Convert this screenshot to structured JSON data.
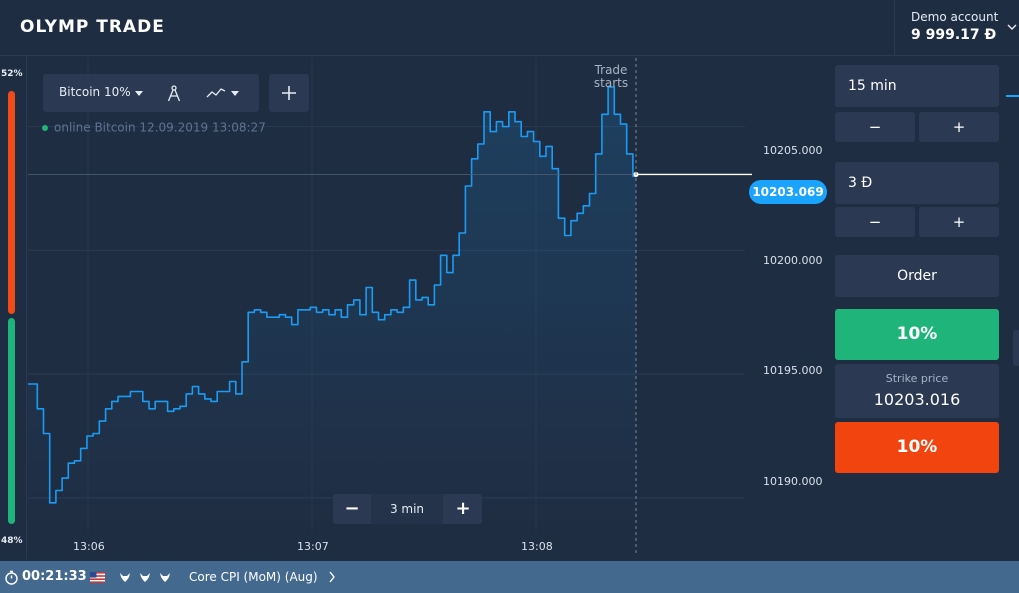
{
  "app": {
    "logo": "OLYMP TRADE"
  },
  "account": {
    "label": "Demo account",
    "balance": "9 999.17 Đ"
  },
  "sentiment": {
    "up_pct": "52%",
    "down_pct": "48%",
    "up_value": 52,
    "down_value": 48,
    "up_color": "#f24b1a",
    "down_color": "#1fb57a"
  },
  "toolbar": {
    "asset": "Bitcoin",
    "asset_percent": "10%",
    "draw_icon": "compass-icon",
    "indicator_icon": "trend-line-icon",
    "add_icon": "plus-icon"
  },
  "status": {
    "state": "online",
    "asset": "Bitcoin",
    "datetime": "12.09.2019 13:08:27"
  },
  "trade_marker": {
    "line1": "Trade",
    "line2": "starts"
  },
  "current_price": "10203.069",
  "zoom": {
    "minus": "−",
    "value": "3 min",
    "plus": "+"
  },
  "trade_panel": {
    "duration": "15 min",
    "amount": "3 Đ",
    "minus": "−",
    "plus": "+",
    "order_label": "Order",
    "up_label": "10%",
    "strike_label": "Strike price",
    "strike_value": "10203.016",
    "down_label": "10%"
  },
  "bottom_bar": {
    "timer": "00:21:33",
    "event": "Core CPI (MoM) (Aug)",
    "country_flag": "us-flag-icon",
    "impact_icons": "bull-icon"
  },
  "colors": {
    "accent": "#1aa3ff",
    "up": "#1fb57a",
    "down": "#f2440f",
    "bg": "#1f2d42"
  },
  "chart_data": {
    "type": "line",
    "asset": "Bitcoin",
    "y_ticks": [
      "10205.000",
      "10200.000",
      "10195.000",
      "10190.000"
    ],
    "x_ticks": [
      "13:06",
      "13:07",
      "13:08"
    ],
    "ylim": [
      10188.5,
      10208.5
    ],
    "series": [
      {
        "values": [
          10194.6,
          10194.6,
          10193.6,
          10192.6,
          10189.8,
          10190.3,
          10190.8,
          10191.4,
          10191.5,
          10192.0,
          10192.5,
          10192.6,
          10193.1,
          10193.6,
          10193.9,
          10194.1,
          10194.1,
          10194.3,
          10194.3,
          10193.9,
          10193.6,
          10193.9,
          10193.9,
          10193.5,
          10193.6,
          10193.7,
          10194.2,
          10194.5,
          10194.2,
          10194.0,
          10193.9,
          10194.3,
          10194.3,
          10194.7,
          10194.2,
          10195.5,
          10197.5,
          10197.6,
          10197.5,
          10197.3,
          10197.3,
          10197.4,
          10197.3,
          10197.0,
          10197.6,
          10197.6,
          10197.7,
          10197.5,
          10197.6,
          10197.4,
          10197.6,
          10197.3,
          10197.8,
          10198.0,
          10197.4,
          10198.5,
          10197.5,
          10197.2,
          10197.4,
          10197.6,
          10197.5,
          10197.7,
          10198.8,
          10198.0,
          10198.1,
          10197.8,
          10198.6,
          10199.8,
          10199.1,
          10199.8,
          10200.7,
          10202.6,
          10203.7,
          10204.3,
          10205.6,
          10204.8,
          10205.2,
          10205.0,
          10205.6,
          10205.2,
          10204.6,
          10204.8,
          10204.4,
          10203.8,
          10204.2,
          10203.3,
          10201.3,
          10200.6,
          10201.2,
          10201.5,
          10201.8,
          10202.3,
          10203.9,
          10205.5,
          10206.6,
          10205.5,
          10205.1,
          10203.9,
          10203.0
        ]
      }
    ],
    "current_price": "10203.069",
    "strike_price": "10203.016",
    "trade_start_label": "Trade starts",
    "grid": true
  }
}
